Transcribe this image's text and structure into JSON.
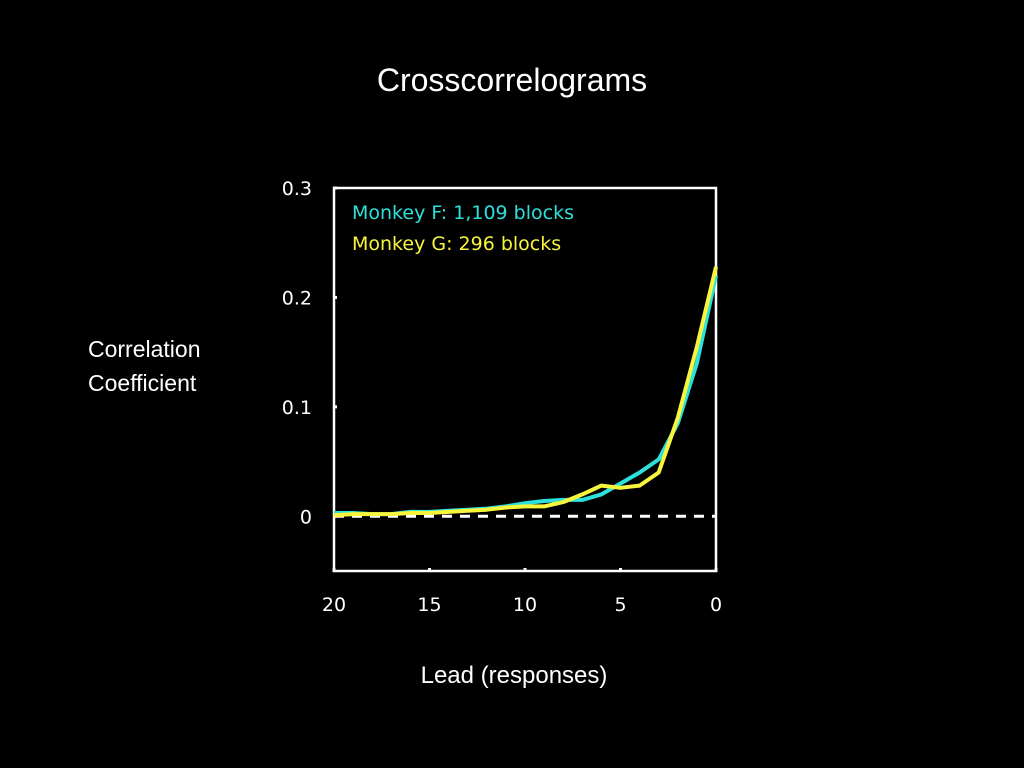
{
  "slide_title": "Crosscorrelograms",
  "chart_data": {
    "type": "line",
    "title": "",
    "ylabel_lines": [
      "Correlation",
      "Coefficient"
    ],
    "xlabel": "Lead (responses)",
    "xlim": [
      20,
      0
    ],
    "ylim": [
      -0.05,
      0.3
    ],
    "x_ticks": [
      20,
      15,
      10,
      5,
      0
    ],
    "x_tick_labels": [
      "20",
      "15",
      "10",
      "5",
      "0"
    ],
    "y_ticks": [
      0,
      0.1,
      0.2,
      0.3
    ],
    "y_tick_labels": [
      "0",
      "0.1",
      "0.2",
      "0.3"
    ],
    "zero_line": {
      "y": 0,
      "style": "dashed",
      "color": "#ffffff"
    },
    "grid": false,
    "legend_position": "top-left",
    "x": [
      20,
      19,
      18,
      17,
      16,
      15,
      14,
      13,
      12,
      11,
      10,
      9,
      8,
      7,
      6,
      5,
      4,
      3,
      2,
      1,
      0
    ],
    "series": [
      {
        "name": "Monkey F: 1,109 blocks",
        "color": "#2de0dc",
        "values": [
          0.003,
          0.003,
          0.002,
          0.002,
          0.004,
          0.004,
          0.005,
          0.006,
          0.007,
          0.009,
          0.012,
          0.014,
          0.015,
          0.015,
          0.02,
          0.03,
          0.04,
          0.052,
          0.085,
          0.14,
          0.22
        ]
      },
      {
        "name": "Monkey G: 296 blocks",
        "color": "#f8f53c",
        "values": [
          0.001,
          0.002,
          0.002,
          0.002,
          0.003,
          0.003,
          0.004,
          0.005,
          0.006,
          0.008,
          0.009,
          0.009,
          0.013,
          0.02,
          0.028,
          0.026,
          0.028,
          0.04,
          0.09,
          0.155,
          0.228
        ]
      }
    ]
  }
}
